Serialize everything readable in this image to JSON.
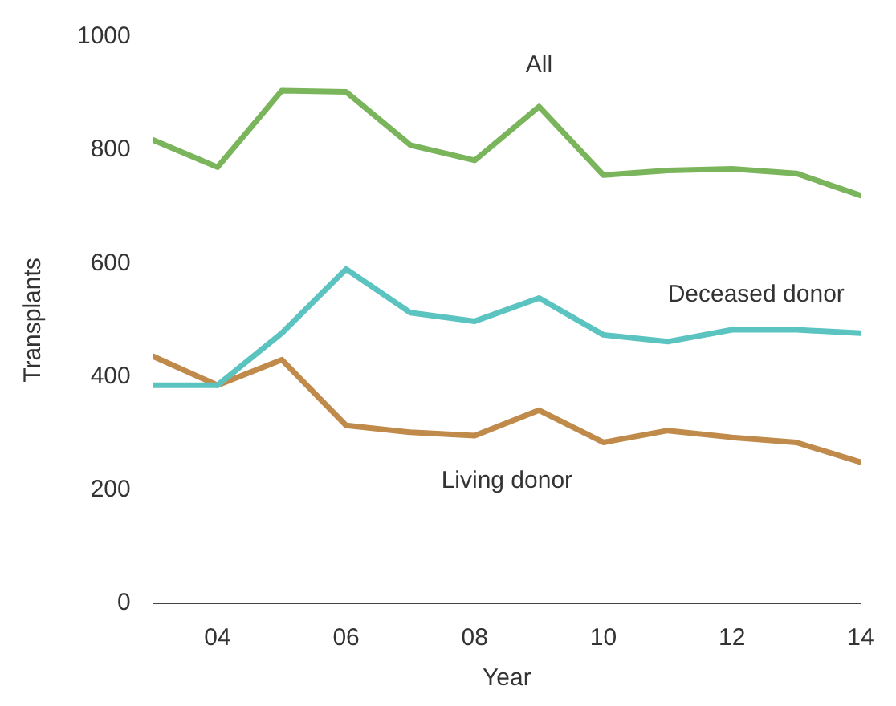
{
  "chart_data": {
    "type": "line",
    "xlabel": "Year",
    "ylabel": "Transplants",
    "x": [
      2003,
      2004,
      2005,
      2006,
      2007,
      2008,
      2009,
      2010,
      2011,
      2012,
      2013,
      2014
    ],
    "series": [
      {
        "name": "All",
        "color": "#7ab55c",
        "values": [
          818,
          770,
          905,
          903,
          809,
          782,
          877,
          756,
          764,
          767,
          759,
          720
        ]
      },
      {
        "name": "Deceased donor",
        "color": "#5cc4c0",
        "values": [
          385,
          385,
          477,
          590,
          513,
          498,
          539,
          474,
          462,
          483,
          483,
          477
        ]
      },
      {
        "name": "Living donor",
        "color": "#c08a4a",
        "values": [
          436,
          385,
          430,
          314,
          302,
          296,
          341,
          284,
          305,
          293,
          284,
          249
        ]
      }
    ],
    "xlim": [
      2003,
      2014
    ],
    "xticks": [
      {
        "value": 2004,
        "label": "04"
      },
      {
        "value": 2006,
        "label": "06"
      },
      {
        "value": 2008,
        "label": "08"
      },
      {
        "value": 2010,
        "label": "10"
      },
      {
        "value": 2012,
        "label": "12"
      },
      {
        "value": 2014,
        "label": "14"
      }
    ],
    "ylim": [
      0,
      1000
    ],
    "yticks": [
      0,
      200,
      400,
      600,
      800,
      1000
    ],
    "grid": false,
    "legend": false,
    "marker": "none",
    "line_style": "solid"
  }
}
